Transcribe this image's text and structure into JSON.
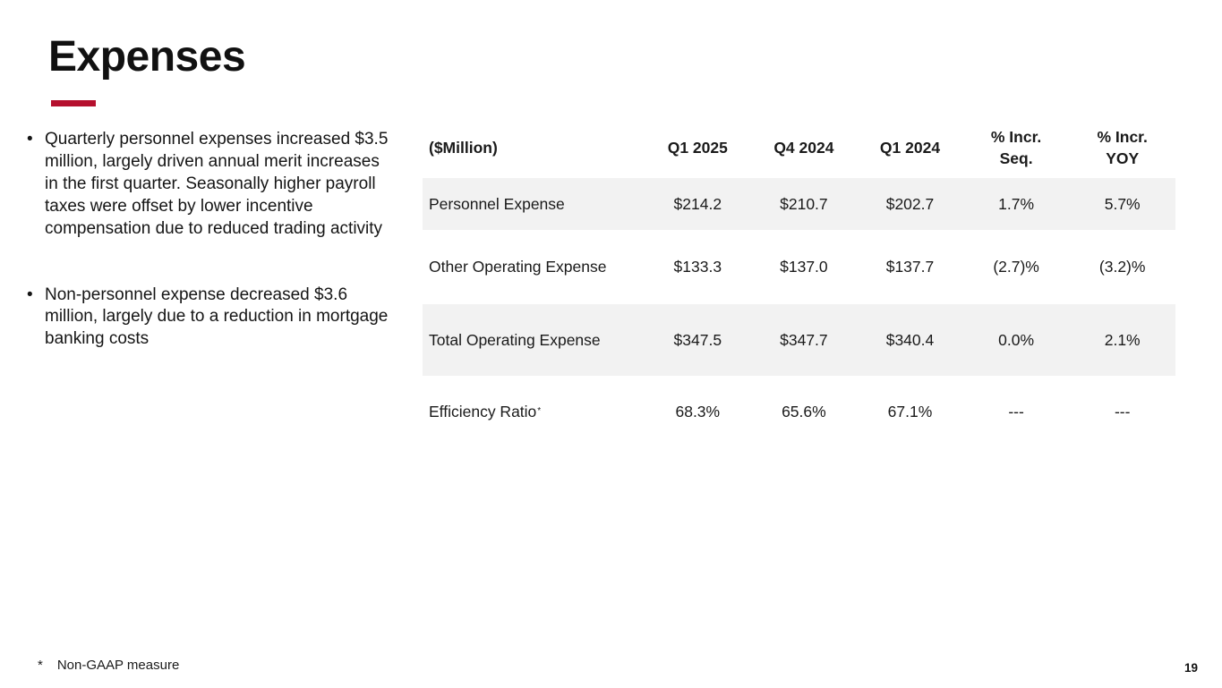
{
  "slide": {
    "title": "Expenses",
    "bullets": [
      "Quarterly personnel expenses increased $3.5 million, largely driven annual merit increases in the first quarter. Seasonally higher payroll taxes were offset by lower incentive compensation due to reduced trading activity",
      "Non-personnel expense decreased $3.6 million, largely due to a reduction in mortgage banking costs"
    ],
    "table": {
      "headers": [
        "($Million)",
        "Q1 2025",
        "Q4 2024",
        "Q1 2024",
        "% Incr.\nSeq.",
        "% Incr.\nYOY"
      ],
      "rows": [
        {
          "label": "Personnel Expense",
          "values": [
            "$214.2",
            "$210.7",
            "$202.7",
            "1.7%",
            "5.7%"
          ]
        },
        {
          "label": "Other Operating Expense",
          "values": [
            "$133.3",
            "$137.0",
            "$137.7",
            "(2.7)%",
            "(3.2)%"
          ]
        },
        {
          "label": "Total Operating Expense",
          "values": [
            "$347.5",
            "$347.7",
            "$340.4",
            "0.0%",
            "2.1%"
          ]
        },
        {
          "label": "Efficiency Ratio",
          "footnote_marker": "*",
          "values": [
            "68.3%",
            "65.6%",
            "67.1%",
            "---",
            "---"
          ]
        }
      ]
    },
    "footnote": {
      "marker": "*",
      "text": "Non-GAAP measure"
    },
    "page_number": "19",
    "colors": {
      "accent_red": "#B5102E",
      "row_shade": "#F2F2F2",
      "text": "#1A1A1A"
    }
  }
}
